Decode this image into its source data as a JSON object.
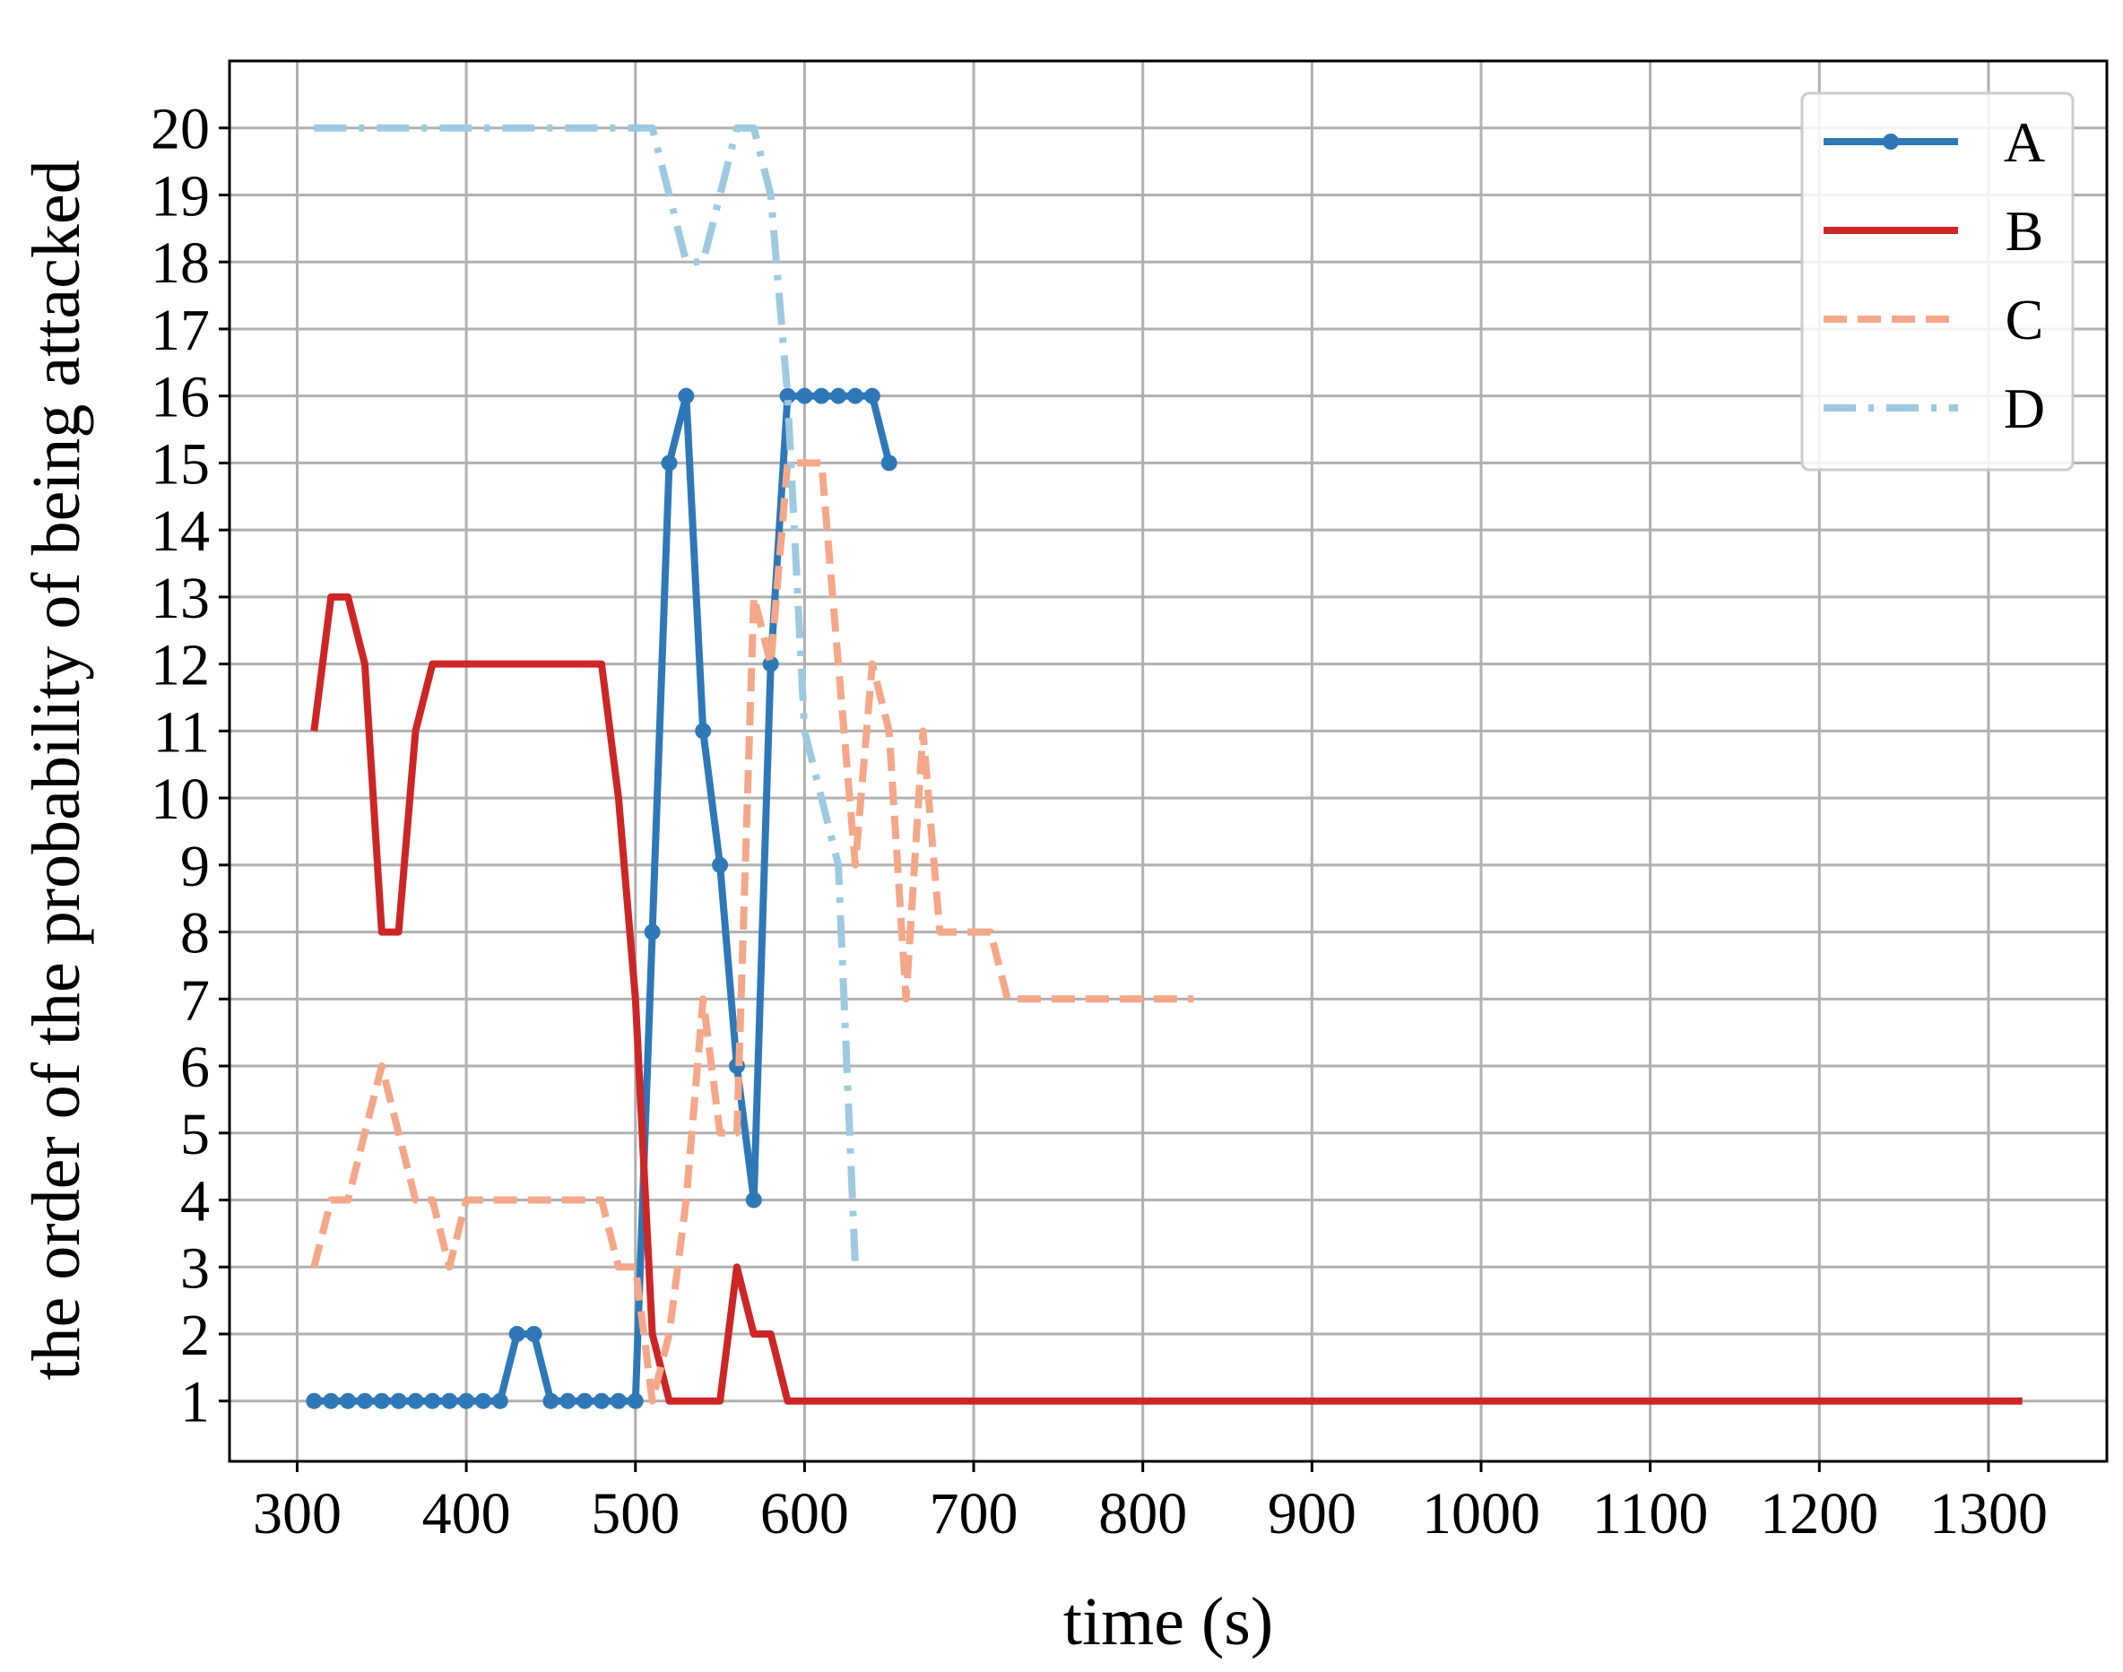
{
  "chart_data": {
    "type": "line",
    "xlabel": "time (s)",
    "ylabel": "the order of the probability of being attacked",
    "xlim": [
      260,
      1370
    ],
    "ylim": [
      0.1,
      21.0
    ],
    "xticks": [
      300,
      400,
      500,
      600,
      700,
      800,
      900,
      1000,
      1100,
      1200,
      1300
    ],
    "yticks": [
      1,
      2,
      3,
      4,
      5,
      6,
      7,
      8,
      9,
      10,
      11,
      12,
      13,
      14,
      15,
      16,
      17,
      18,
      19,
      20
    ],
    "grid": true,
    "legend_position": "top-right",
    "series": [
      {
        "name": "A",
        "color": "#2f78b8",
        "style": "solid",
        "marker": "circle",
        "x": [
          310,
          320,
          330,
          340,
          350,
          360,
          370,
          380,
          390,
          400,
          410,
          420,
          430,
          440,
          450,
          460,
          470,
          480,
          490,
          500,
          510,
          520,
          530,
          540,
          550,
          560,
          570,
          580,
          590,
          600,
          610,
          620,
          630,
          640,
          650
        ],
        "y": [
          1,
          1,
          1,
          1,
          1,
          1,
          1,
          1,
          1,
          1,
          1,
          1,
          2,
          2,
          1,
          1,
          1,
          1,
          1,
          1,
          8,
          15,
          16,
          11,
          9,
          6,
          4,
          12,
          16,
          16,
          16,
          16,
          16,
          16,
          15
        ]
      },
      {
        "name": "B",
        "color": "#cc2626",
        "style": "solid",
        "marker": "none",
        "x": [
          310,
          320,
          330,
          340,
          350,
          360,
          370,
          380,
          390,
          400,
          410,
          420,
          430,
          440,
          450,
          460,
          470,
          480,
          490,
          500,
          510,
          520,
          530,
          540,
          550,
          560,
          570,
          580,
          590,
          600,
          700,
          800,
          900,
          1000,
          1100,
          1200,
          1320
        ],
        "y": [
          11,
          13,
          13,
          12,
          8,
          8,
          11,
          12,
          12,
          12,
          12,
          12,
          12,
          12,
          12,
          12,
          12,
          12,
          10,
          7,
          2,
          1,
          1,
          1,
          1,
          3,
          2,
          2,
          1,
          1,
          1,
          1,
          1,
          1,
          1,
          1,
          1
        ]
      },
      {
        "name": "C",
        "color": "#f4a889",
        "style": "dashed",
        "marker": "none",
        "x": [
          310,
          320,
          330,
          340,
          350,
          360,
          370,
          380,
          390,
          400,
          410,
          420,
          430,
          440,
          450,
          460,
          470,
          480,
          490,
          500,
          510,
          520,
          530,
          540,
          550,
          560,
          570,
          580,
          590,
          600,
          610,
          620,
          630,
          640,
          650,
          660,
          670,
          680,
          690,
          700,
          710,
          720,
          730,
          740,
          750,
          760,
          770,
          780,
          790,
          800,
          810,
          820,
          830
        ],
        "y": [
          3,
          4,
          4,
          5,
          6,
          5,
          4,
          4,
          3,
          4,
          4,
          4,
          4,
          4,
          4,
          4,
          4,
          4,
          3,
          3,
          1,
          2,
          4,
          7,
          5,
          5,
          13,
          12,
          15,
          15,
          15,
          12,
          9,
          12,
          11,
          7,
          11,
          8,
          8,
          8,
          8,
          7,
          7,
          7,
          7,
          7,
          7,
          7,
          7,
          7,
          7,
          7,
          7
        ]
      },
      {
        "name": "D",
        "color": "#9ecae1",
        "style": "dashdot",
        "marker": "none",
        "x": [
          310,
          350,
          400,
          450,
          500,
          510,
          520,
          530,
          540,
          550,
          560,
          570,
          580,
          590,
          600,
          610,
          620,
          630
        ],
        "y": [
          20,
          20,
          20,
          20,
          20,
          20,
          19,
          18,
          18,
          19,
          20,
          20,
          19,
          16,
          11,
          10,
          9,
          3
        ]
      }
    ]
  }
}
